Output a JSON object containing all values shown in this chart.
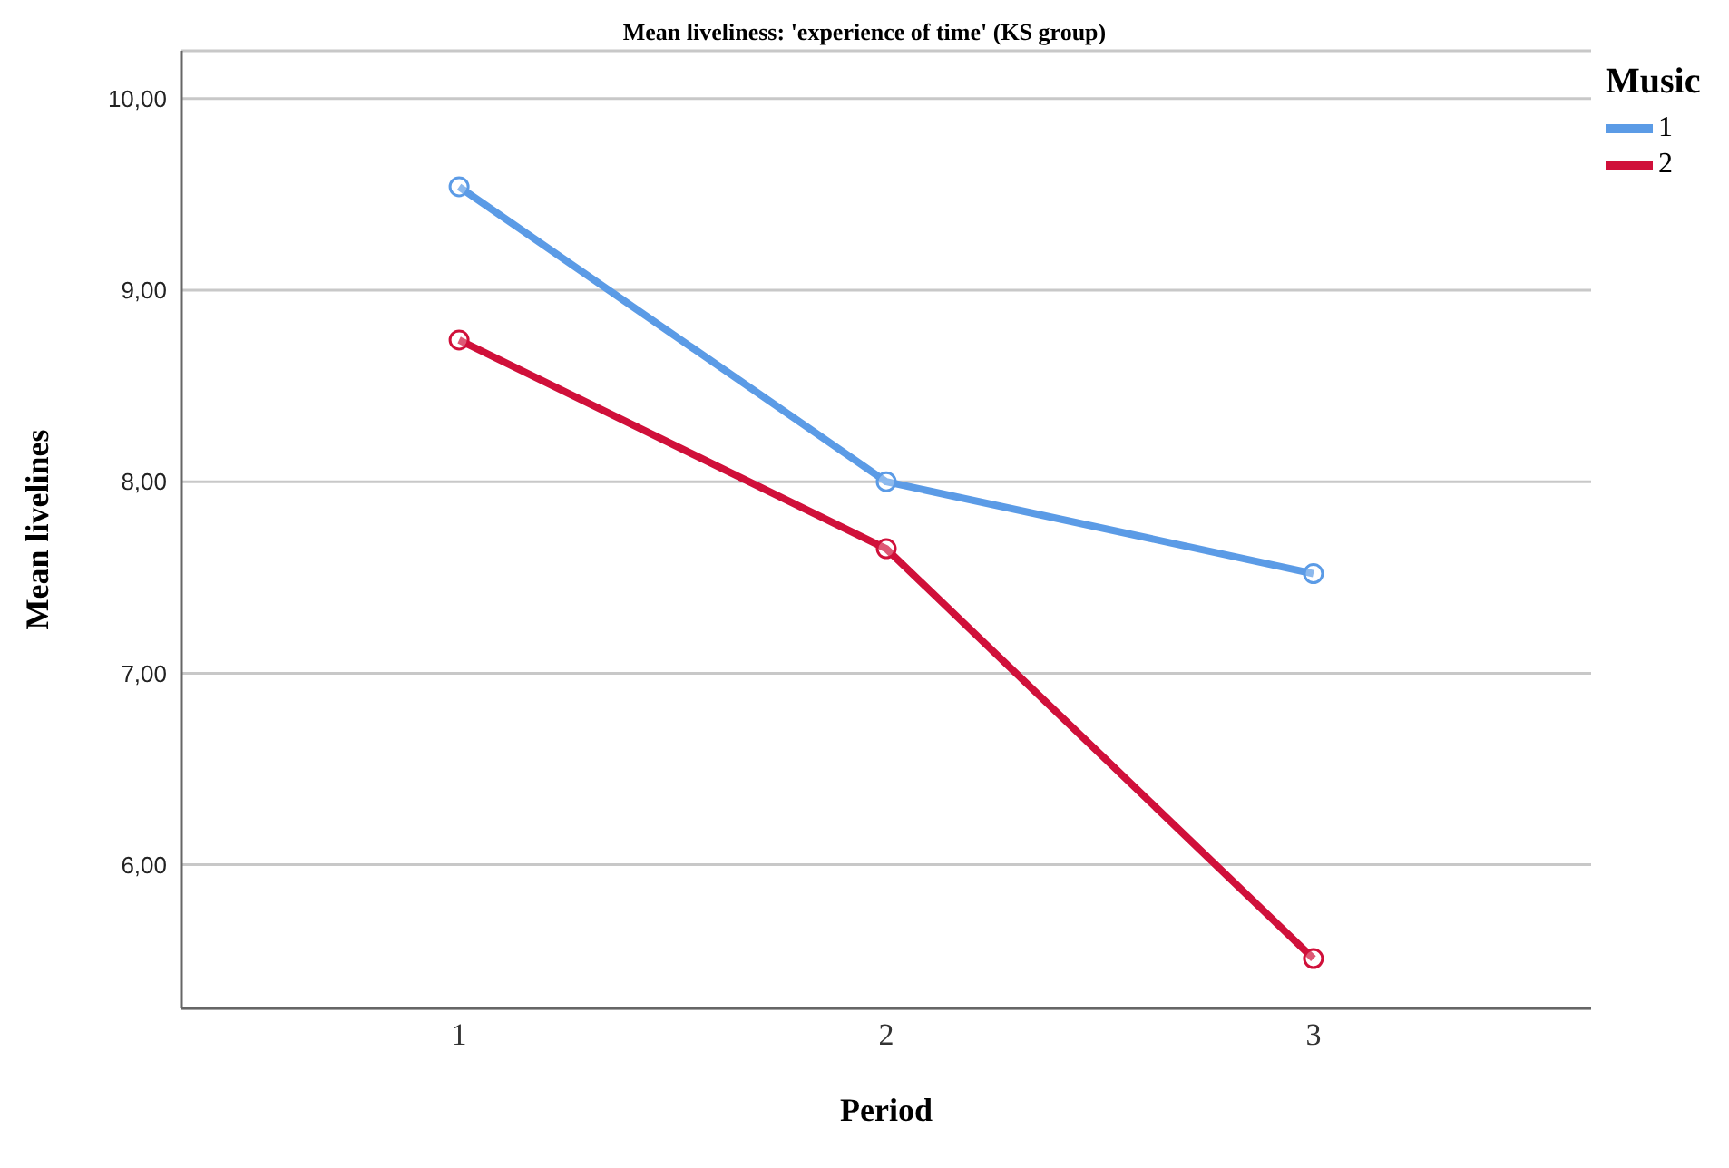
{
  "chart_data": {
    "type": "line",
    "title": "Mean liveliness: 'experience of time' (KS group)",
    "xlabel": "Period",
    "ylabel": "Mean livelines",
    "legend_title": "Music",
    "categories": [
      "1",
      "2",
      "3"
    ],
    "series": [
      {
        "name": "1",
        "color": "#5b9be6",
        "values": [
          9.54,
          8.0,
          7.52
        ]
      },
      {
        "name": "2",
        "color": "#d0103a",
        "values": [
          8.74,
          7.65,
          5.51
        ]
      }
    ],
    "ylim": [
      5.25,
      10.25
    ],
    "yticks": [
      {
        "value": 6,
        "label": "6,00"
      },
      {
        "value": 7,
        "label": "7,00"
      },
      {
        "value": 8,
        "label": "8,00"
      },
      {
        "value": 9,
        "label": "9,00"
      },
      {
        "value": 10,
        "label": "10,00"
      }
    ],
    "grid": "y",
    "legend": "top right",
    "marker": "circle",
    "line_style": "solid"
  }
}
